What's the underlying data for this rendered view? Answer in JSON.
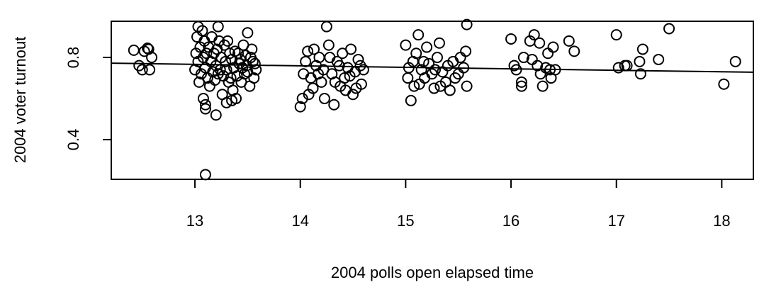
{
  "chart_data": {
    "type": "scatter",
    "x_label": "2004 polls open elapsed time",
    "y_label": "2004 voter turnout",
    "xlim": [
      12.206,
      18.3
    ],
    "ylim": [
      0.207,
      0.976
    ],
    "xticks": [
      13,
      14,
      15,
      16,
      17,
      18
    ],
    "yticks": [
      0.4,
      0.8
    ],
    "color": "#000000",
    "x": [
      12.42,
      12.47,
      12.5,
      12.52,
      12.55,
      12.57,
      12.59,
      12.56,
      13.1,
      13.2,
      13.1,
      13.1,
      13.08,
      13.03,
      13.22,
      13.5,
      13.02,
      13.05,
      13.08,
      13.1,
      13.12,
      13.15,
      13.18,
      13.2,
      13.22,
      13.25,
      13.28,
      13.3,
      13.32,
      13.35,
      13.38,
      13.4,
      13.42,
      13.45,
      13.48,
      13.5,
      13.52,
      13.55,
      13.58,
      13.03,
      13.06,
      13.09,
      13.11,
      13.14,
      13.16,
      13.19,
      13.21,
      13.24,
      13.26,
      13.29,
      13.31,
      13.34,
      13.37,
      13.39,
      13.41,
      13.44,
      13.46,
      13.49,
      13.53,
      13.56,
      13.01,
      13.04,
      13.07,
      13.13,
      13.17,
      13.23,
      13.27,
      13.33,
      13.36,
      13.43,
      13.47,
      13.54,
      13.57,
      13.0,
      13.3,
      13.35,
      14.0,
      14.02,
      14.03,
      14.05,
      14.07,
      14.1,
      14.12,
      14.15,
      14.18,
      14.2,
      14.22,
      14.25,
      14.27,
      14.3,
      14.32,
      14.35,
      14.38,
      14.4,
      14.42,
      14.45,
      14.48,
      14.5,
      14.52,
      14.55,
      14.58,
      14.6,
      14.08,
      14.13,
      14.17,
      14.23,
      14.28,
      14.33,
      14.37,
      14.43,
      14.47,
      14.53,
      14.57,
      15.0,
      15.02,
      15.03,
      15.05,
      15.07,
      15.1,
      15.12,
      15.13,
      15.15,
      15.18,
      15.2,
      15.22,
      15.25,
      15.27,
      15.3,
      15.32,
      15.35,
      15.38,
      15.4,
      15.42,
      15.45,
      15.5,
      15.52,
      15.55,
      15.58,
      15.58,
      15.57,
      15.08,
      15.17,
      15.28,
      15.33,
      15.47,
      16.0,
      16.03,
      16.05,
      16.1,
      16.1,
      16.12,
      16.18,
      16.2,
      16.22,
      16.25,
      16.27,
      16.28,
      16.3,
      16.33,
      16.35,
      16.37,
      16.38,
      16.4,
      16.42,
      16.55,
      16.6,
      17.0,
      17.02,
      17.08,
      17.1,
      17.22,
      17.23,
      17.25,
      17.4,
      17.5,
      18.02,
      18.13
    ],
    "y": [
      0.835,
      0.76,
      0.74,
      0.83,
      0.845,
      0.74,
      0.8,
      0.84,
      0.23,
      0.52,
      0.55,
      0.57,
      0.6,
      0.95,
      0.95,
      0.92,
      0.9,
      0.85,
      0.8,
      0.75,
      0.7,
      0.78,
      0.82,
      0.76,
      0.72,
      0.8,
      0.86,
      0.74,
      0.68,
      0.79,
      0.83,
      0.71,
      0.77,
      0.75,
      0.81,
      0.73,
      0.66,
      0.78,
      0.74,
      0.78,
      0.72,
      0.88,
      0.82,
      0.66,
      0.9,
      0.69,
      0.84,
      0.74,
      0.62,
      0.78,
      0.88,
      0.7,
      0.75,
      0.6,
      0.82,
      0.68,
      0.86,
      0.76,
      0.8,
      0.7,
      0.82,
      0.68,
      0.93,
      0.85,
      0.73,
      0.88,
      0.71,
      0.82,
      0.64,
      0.79,
      0.72,
      0.84,
      0.77,
      0.74,
      0.58,
      0.59,
      0.56,
      0.6,
      0.72,
      0.78,
      0.83,
      0.7,
      0.65,
      0.76,
      0.8,
      0.68,
      0.74,
      0.95,
      0.86,
      0.72,
      0.57,
      0.78,
      0.66,
      0.82,
      0.7,
      0.75,
      0.84,
      0.62,
      0.73,
      0.79,
      0.67,
      0.74,
      0.62,
      0.84,
      0.72,
      0.6,
      0.8,
      0.68,
      0.76,
      0.64,
      0.71,
      0.65,
      0.76,
      0.86,
      0.7,
      0.75,
      0.59,
      0.78,
      0.82,
      0.91,
      0.67,
      0.74,
      0.7,
      0.85,
      0.77,
      0.72,
      0.65,
      0.8,
      0.87,
      0.73,
      0.68,
      0.76,
      0.64,
      0.78,
      0.72,
      0.8,
      0.75,
      0.96,
      0.66,
      0.83,
      0.66,
      0.78,
      0.74,
      0.66,
      0.7,
      0.89,
      0.76,
      0.74,
      0.68,
      0.66,
      0.8,
      0.88,
      0.79,
      0.91,
      0.76,
      0.87,
      0.72,
      0.66,
      0.75,
      0.82,
      0.74,
      0.7,
      0.85,
      0.74,
      0.88,
      0.83,
      0.91,
      0.75,
      0.76,
      0.76,
      0.78,
      0.72,
      0.84,
      0.79,
      0.94,
      0.67,
      0.78
    ],
    "trend_line": {
      "x": [
        12.206,
        18.3
      ],
      "y": [
        0.772,
        0.728
      ]
    }
  }
}
